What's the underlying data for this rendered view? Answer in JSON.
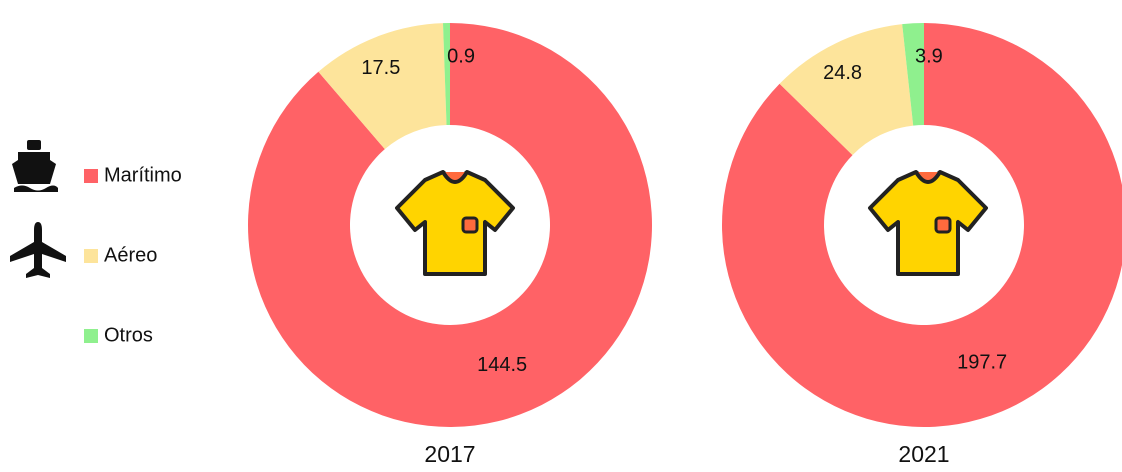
{
  "legend": {
    "categories": [
      "Marítimo",
      "Aéreo",
      "Otros"
    ],
    "colors": [
      "#ff6266",
      "#fde49b",
      "#8ff08e"
    ]
  },
  "chart_data": [
    {
      "type": "donut",
      "title": "2017",
      "values": [
        144.5,
        17.5,
        0.9
      ]
    },
    {
      "type": "donut",
      "title": "2021",
      "values": [
        197.7,
        24.8,
        3.9
      ]
    }
  ]
}
